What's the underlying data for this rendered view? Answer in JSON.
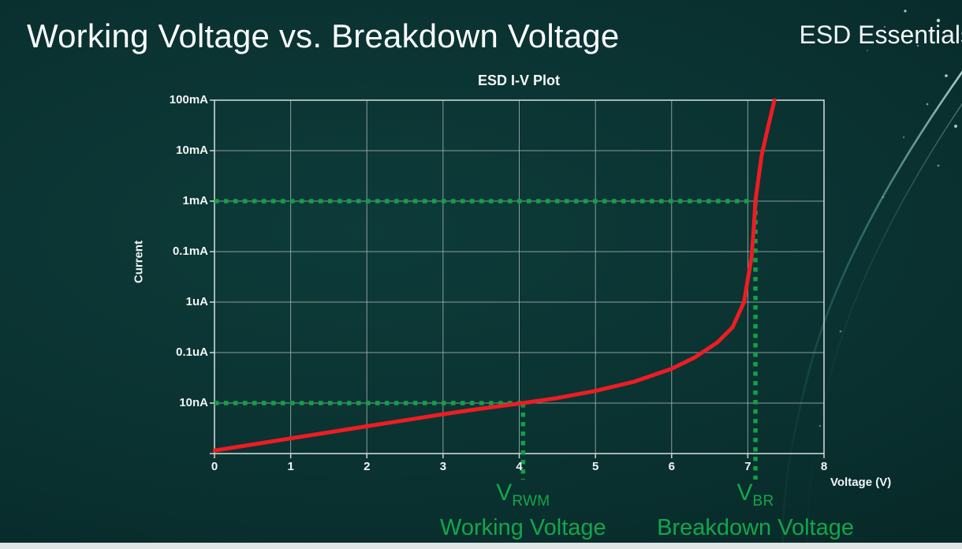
{
  "header": {
    "title": "Working Voltage vs. Breakdown Voltage",
    "brand": "ESD Essentials"
  },
  "colors": {
    "background": "#0a3231",
    "grid": "#b4c1c1",
    "curve_red": "#ee1c23",
    "annotation_green": "#15a54c",
    "text": "#f5f8f8"
  },
  "chart_data": {
    "type": "line",
    "title": "ESD I-V Plot",
    "xlabel": "Voltage (V)",
    "ylabel": "Current",
    "grid": true,
    "x_axis": {
      "min": 0,
      "max": 8,
      "ticks": [
        0,
        1,
        2,
        3,
        4,
        5,
        6,
        7,
        8
      ]
    },
    "y_axis": {
      "scale": "log",
      "rows": 7,
      "tick_labels_top_to_bottom": [
        "100mA",
        "10mA",
        "1mA",
        "0.1mA",
        "1uA",
        "0.1uA",
        "10nA"
      ]
    },
    "series": [
      {
        "name": "ESD I-V curve",
        "color": "#ee1c23",
        "points_v": [
          0,
          0.5,
          1,
          1.5,
          2,
          2.5,
          3,
          3.5,
          4.05,
          4.5,
          5,
          5.5,
          6,
          6.3,
          6.6,
          6.8,
          6.95,
          7.05,
          7.08,
          7.1,
          7.18,
          7.27,
          7.35
        ],
        "points_level": [
          0.06,
          0.18,
          0.3,
          0.42,
          0.54,
          0.66,
          0.78,
          0.89,
          1,
          1.1,
          1.24,
          1.42,
          1.68,
          1.9,
          2.2,
          2.5,
          3,
          3.9,
          4.5,
          5,
          5.9,
          6.5,
          7
        ]
      }
    ],
    "annotations": [
      {
        "id": "working",
        "voltage": 4.05,
        "current_label": "10nA",
        "current_level": 1,
        "symbol": "V",
        "symbol_sub": "RWM",
        "caption": "Working Voltage",
        "color": "#12a047"
      },
      {
        "id": "breakdown",
        "voltage": 7.1,
        "current_label": "1mA",
        "current_level": 5,
        "symbol": "V",
        "symbol_sub": "BR",
        "caption": "Breakdown Voltage",
        "color": "#12a047"
      }
    ]
  }
}
